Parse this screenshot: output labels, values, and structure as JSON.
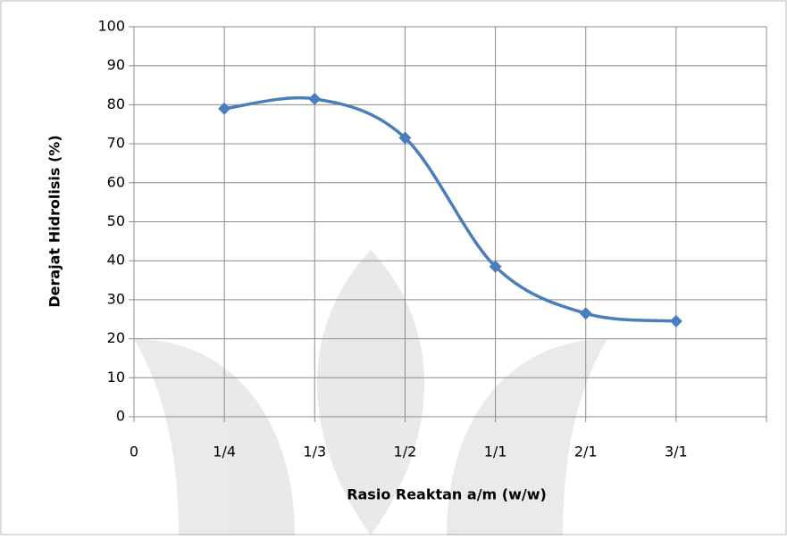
{
  "chart_data": {
    "type": "line",
    "x_label": "Rasio Reaktan a/m (w/w)",
    "y_label": "Derajat Hidrolisis (%)",
    "categories": [
      "0",
      "1/4",
      "1/3",
      "1/2",
      "1/1",
      "2/1",
      "3/1"
    ],
    "series": [
      {
        "color": "#4a7ebb",
        "values": [
          null,
          79,
          81.5,
          71.5,
          38.5,
          26.5,
          24.5
        ]
      }
    ],
    "ylim": [
      0,
      100
    ],
    "yticks": [
      0,
      10,
      20,
      30,
      40,
      50,
      60,
      70,
      80,
      90,
      100
    ],
    "grid": true,
    "smooth": true
  }
}
